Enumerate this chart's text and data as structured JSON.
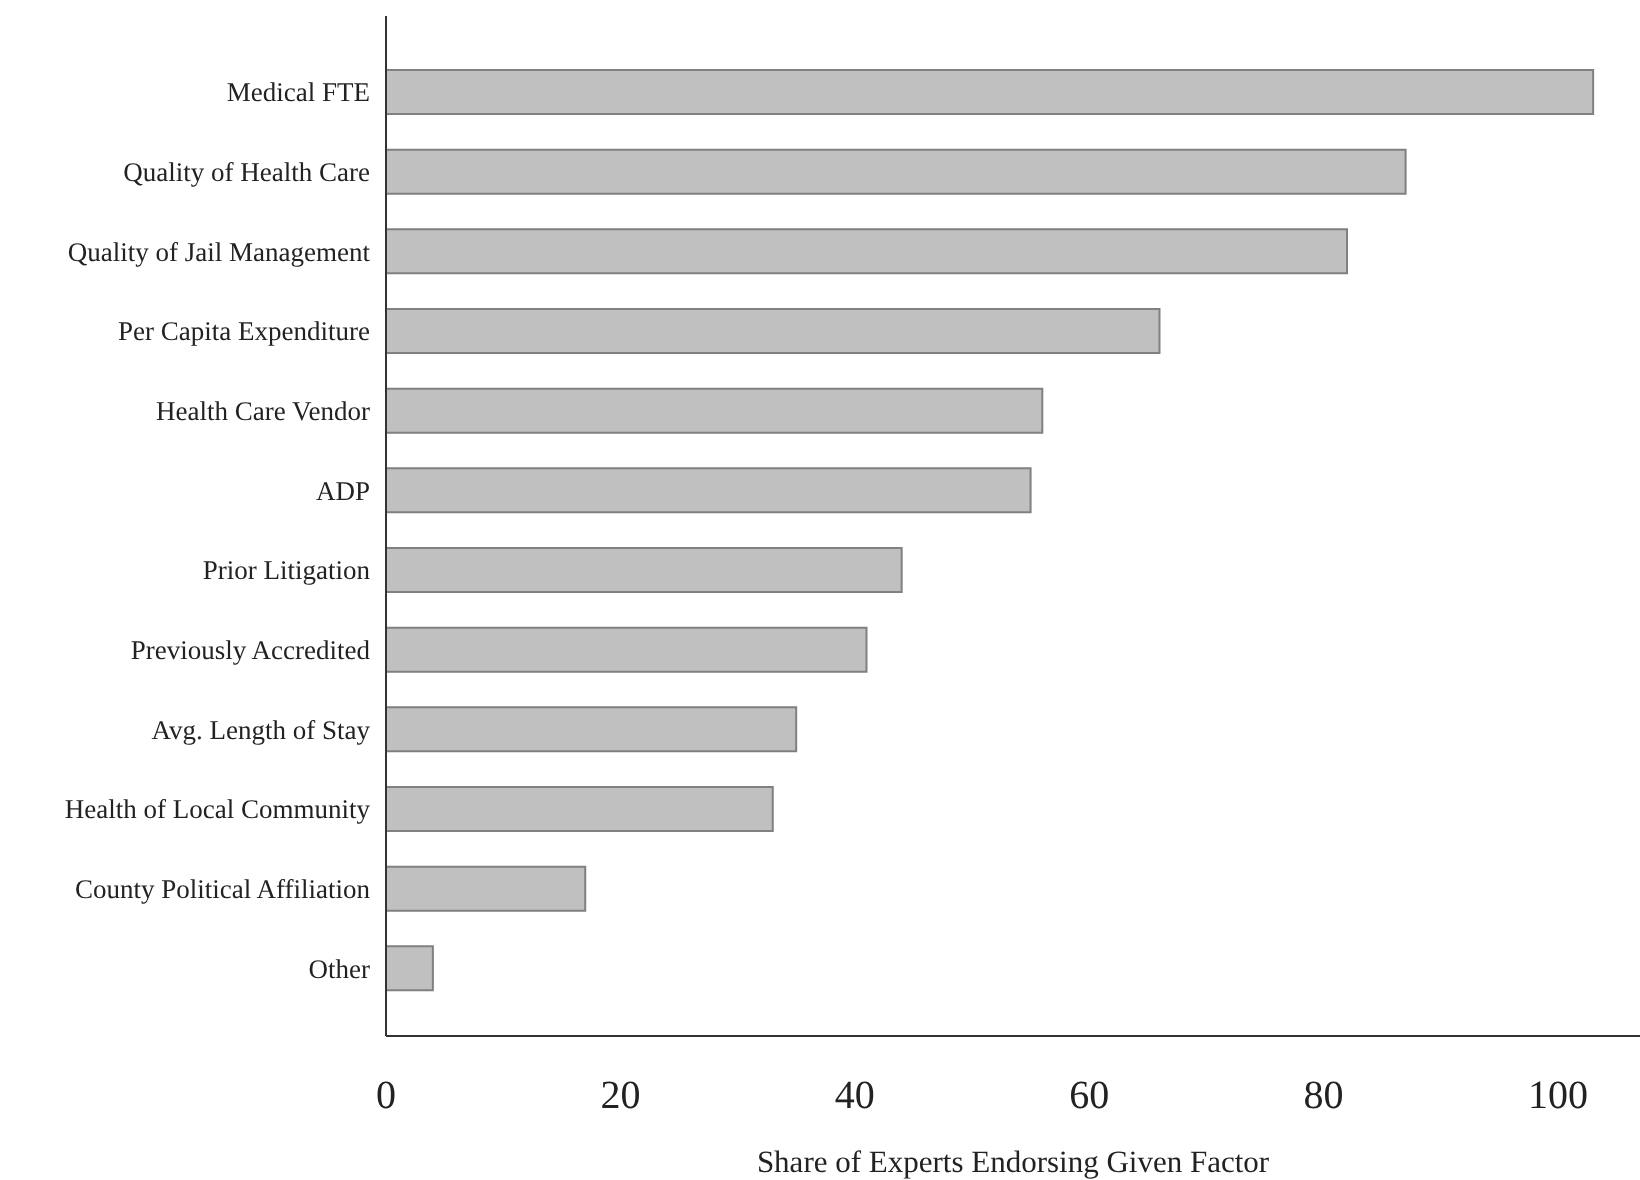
{
  "chart_data": {
    "type": "bar",
    "orientation": "horizontal",
    "xlabel": "Share of Experts Endorsing Given Factor",
    "categories": [
      "Medical FTE",
      "Quality of Health Care",
      "Quality of Jail Management",
      "Per Capita Expenditure",
      "Health Care Vendor",
      "ADP",
      "Prior Litigation",
      "Previously Accredited",
      "Avg. Length of Stay",
      "Health of Local Community",
      "County Political Affiliation",
      "Other"
    ],
    "values": [
      103,
      87,
      82,
      66,
      56,
      55,
      44,
      41,
      35,
      33,
      17,
      4
    ],
    "color": "#c0c0c0",
    "xlim": [
      0,
      107
    ],
    "xticks": [
      0,
      20,
      40,
      60,
      80,
      100
    ],
    "grid": false,
    "legend": false
  }
}
